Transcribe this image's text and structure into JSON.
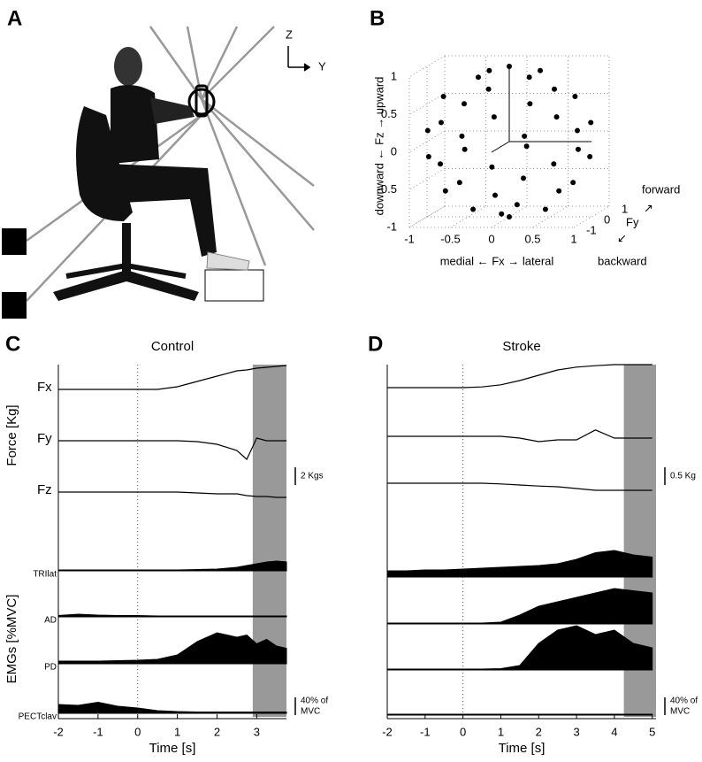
{
  "panel_a": {
    "label": "A",
    "axis_labels": [
      "Z",
      "Y"
    ]
  },
  "chart_data": [
    {
      "type": "scatter3d",
      "label": "B",
      "x": [
        0.31,
        -0.31,
        -0.31,
        0.31,
        0.8,
        0.4,
        -0.4,
        -0.8,
        -0.4,
        0.4,
        0.91,
        0.38,
        -0.38,
        -0.91,
        -0.91,
        -0.38,
        0.38,
        0.91,
        0.98,
        0.69,
        0,
        -0.69,
        -0.98,
        -0.69,
        0,
        0.69,
        0.69,
        0,
        -0.69,
        -0.69,
        0,
        0.69,
        0.44,
        0,
        -0.44,
        0,
        0,
        0
      ],
      "y": [
        0.31,
        0.31,
        -0.31,
        -0.31,
        0,
        0.69,
        0.69,
        0,
        -0.69,
        -0.69,
        0.38,
        0.91,
        0.91,
        0.38,
        -0.38,
        -0.91,
        -0.91,
        -0.38,
        0,
        0.69,
        0.98,
        0.69,
        0,
        -0.69,
        -0.98,
        -0.69,
        0.4,
        0.8,
        0.4,
        -0.4,
        -0.8,
        -0.4,
        0,
        0.44,
        0,
        -0.44,
        0,
        0
      ],
      "z": [
        0.9,
        0.9,
        0.9,
        0.9,
        0.6,
        0.6,
        0.6,
        0.6,
        0.6,
        0.6,
        0.2,
        0.2,
        0.2,
        0.2,
        0.2,
        0.2,
        0.2,
        0.2,
        -0.2,
        -0.2,
        -0.2,
        -0.2,
        -0.2,
        -0.2,
        -0.2,
        -0.2,
        -0.6,
        -0.6,
        -0.6,
        -0.6,
        -0.6,
        -0.6,
        -0.9,
        -0.9,
        -0.9,
        -0.9,
        1,
        -1
      ],
      "color": "#000000",
      "xlim": [
        -1,
        1
      ],
      "ylim": [
        -1,
        1
      ],
      "zlim": [
        -1,
        1
      ],
      "xticks": [
        -1,
        -0.5,
        0,
        0.5,
        1
      ],
      "yticks": [
        -1,
        0,
        1
      ],
      "zticks": [
        -1,
        -0.5,
        0,
        0.5,
        1
      ],
      "xlabel": "medial ← Fx → lateral",
      "ylabel": "Fy",
      "zlabel": "downward ← Fz → upward",
      "y_direction_labels": [
        "forward",
        "backward"
      ],
      "y_direction_arrows": [
        "↗",
        "↙"
      ]
    },
    {
      "type": "traces",
      "label": "C",
      "title": "Control",
      "x": [
        -2,
        -1.5,
        -1,
        -0.5,
        0,
        0.5,
        1,
        1.5,
        2,
        2.5,
        2.75,
        3,
        3.25,
        3.5,
        3.75
      ],
      "xlim": [
        -2,
        3.75
      ],
      "xticks": [
        -2,
        -1,
        0,
        1,
        2,
        3
      ],
      "xlabel": "Time [s]",
      "shade": [
        2.9,
        3.75
      ],
      "force_label": "Force [Kg]",
      "emg_label": "EMGs [%MVC]",
      "force_series": [
        {
          "name": "Fx",
          "values": [
            0,
            0,
            0,
            0,
            0,
            0,
            0.3,
            0.9,
            1.5,
            2.1,
            2.2,
            2.4,
            2.5,
            2.6,
            2.7
          ]
        },
        {
          "name": "Fy",
          "values": [
            0,
            0,
            0,
            0,
            0,
            0,
            0,
            -0.1,
            -0.4,
            -1.1,
            -2.1,
            0.3,
            0,
            0,
            0
          ]
        },
        {
          "name": "Fz",
          "values": [
            0,
            0,
            0,
            0,
            0,
            0,
            0,
            -0.1,
            -0.2,
            -0.2,
            -0.4,
            -0.5,
            -0.5,
            -0.6,
            -0.6
          ]
        }
      ],
      "emg_series": [
        {
          "name": "TRIlat",
          "values": [
            2,
            2,
            2,
            2,
            2,
            2,
            2,
            3,
            4,
            8,
            12,
            16,
            20,
            22,
            20
          ]
        },
        {
          "name": "AD",
          "values": [
            3,
            6,
            4,
            3,
            3,
            2,
            2,
            2,
            2,
            2,
            2,
            2,
            2,
            2,
            2
          ]
        },
        {
          "name": "PD",
          "values": [
            6,
            6,
            6,
            7,
            8,
            10,
            20,
            50,
            70,
            60,
            65,
            45,
            55,
            40,
            35
          ]
        },
        {
          "name": "PECTclav",
          "values": [
            20,
            18,
            25,
            16,
            12,
            6,
            4,
            3,
            3,
            3,
            3,
            3,
            3,
            3,
            3
          ]
        }
      ],
      "force_scale": {
        "value": 2,
        "label": "2 Kgs"
      },
      "emg_scale": {
        "value": 40,
        "label": [
          "40% of",
          "MVC"
        ]
      }
    },
    {
      "type": "traces",
      "label": "D",
      "title": "Stroke",
      "x": [
        -2,
        -1.5,
        -1,
        -0.5,
        0,
        0.5,
        1,
        1.5,
        2,
        2.5,
        3,
        3.5,
        4,
        4.5,
        5
      ],
      "xlim": [
        -2,
        5.1
      ],
      "xticks": [
        -2,
        -1,
        0,
        1,
        2,
        3,
        4,
        5
      ],
      "xlabel": "Time [s]",
      "shade": [
        4.25,
        5.1
      ],
      "force_series": [
        {
          "values": [
            0,
            0,
            0,
            0,
            0,
            0.02,
            0.08,
            0.2,
            0.35,
            0.5,
            0.58,
            0.62,
            0.65,
            0.65,
            0.65
          ]
        },
        {
          "values": [
            0,
            0,
            0,
            0,
            0,
            0,
            0,
            -0.05,
            -0.15,
            -0.1,
            -0.1,
            0.18,
            -0.05,
            -0.05,
            -0.05
          ]
        },
        {
          "values": [
            0,
            0,
            0,
            0,
            0,
            0,
            -0.02,
            -0.05,
            -0.08,
            -0.1,
            -0.15,
            -0.2,
            -0.2,
            -0.2,
            -0.2
          ]
        }
      ],
      "emg_series": [
        {
          "values": [
            14,
            14,
            16,
            16,
            18,
            20,
            22,
            24,
            26,
            30,
            40,
            55,
            60,
            50,
            45
          ]
        },
        {
          "values": [
            2,
            2,
            2,
            2,
            2,
            2,
            4,
            20,
            40,
            50,
            60,
            70,
            80,
            75,
            70
          ]
        },
        {
          "values": [
            2,
            2,
            2,
            2,
            2,
            2,
            3,
            10,
            60,
            90,
            100,
            80,
            90,
            60,
            50
          ]
        },
        {
          "values": [
            2,
            2,
            2,
            2,
            2,
            2,
            2,
            2,
            2,
            2,
            2,
            2,
            2,
            2,
            2
          ]
        }
      ],
      "force_scale": {
        "value": 0.5,
        "label": "0.5 Kg"
      },
      "emg_scale": {
        "value": 40,
        "label": [
          "40% of",
          "MVC"
        ]
      }
    }
  ]
}
